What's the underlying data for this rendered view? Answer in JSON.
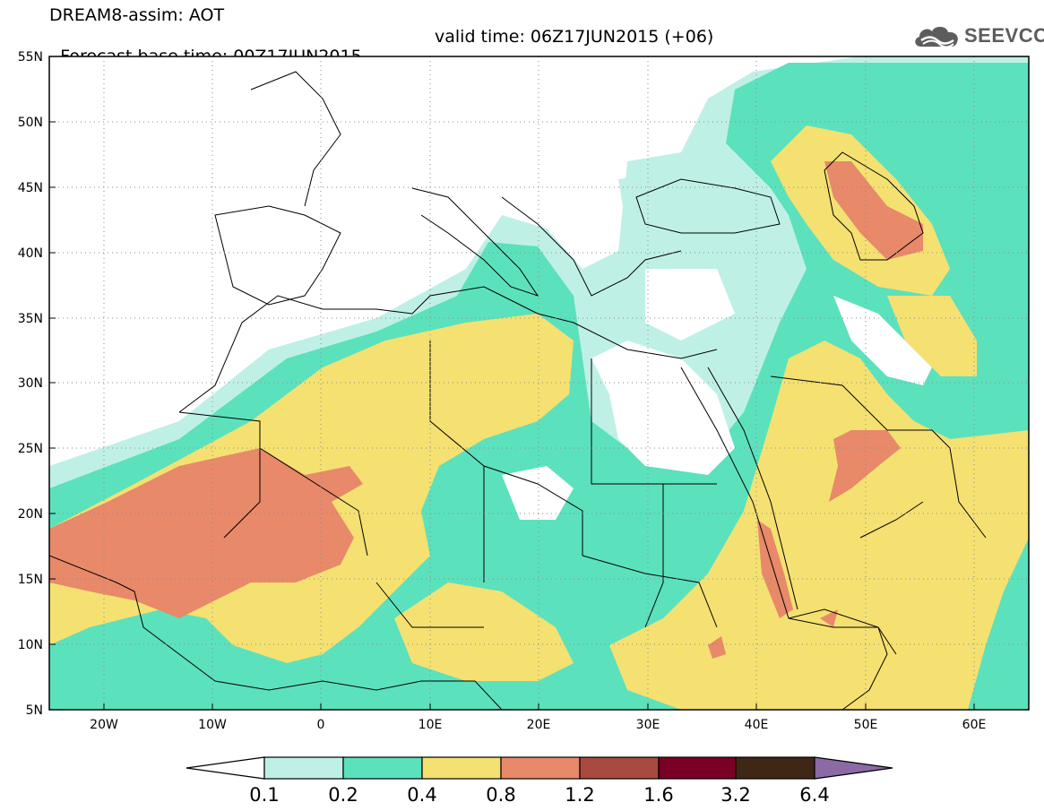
{
  "title": {
    "line1": "DREAM8-assim: AOT",
    "base_time": "Forecast base time: 00Z17JUN2015",
    "valid_time": "valid time: 06Z17JUN2015 (+06)"
  },
  "logo": {
    "text": "SEEVCCC",
    "icon": "cloud-logo-icon"
  },
  "axes": {
    "lat_labels": [
      "55N",
      "50N",
      "45N",
      "40N",
      "35N",
      "30N",
      "25N",
      "20N",
      "15N",
      "10N",
      "5N"
    ],
    "lat_values": [
      55,
      50,
      45,
      40,
      35,
      30,
      25,
      20,
      15,
      10,
      5
    ],
    "lon_labels": [
      "20W",
      "10W",
      "0",
      "10E",
      "20E",
      "30E",
      "40E",
      "50E",
      "60E"
    ],
    "lon_values": [
      -20,
      -10,
      0,
      10,
      20,
      30,
      40,
      50,
      60
    ],
    "lon_range": [
      -25,
      65
    ],
    "lat_range": [
      5,
      55
    ]
  },
  "colorbar": {
    "labels": [
      "0.1",
      "0.2",
      "0.4",
      "0.8",
      "1.2",
      "1.6",
      "3.2",
      "6.4"
    ],
    "colors": [
      "#ffffff",
      "#bff0e6",
      "#5ce1bd",
      "#f4e171",
      "#e8896a",
      "#a84a3f",
      "#7a0025",
      "#3f2716",
      "#8b6aa6"
    ]
  },
  "colors": {
    "c1": "#bff0e6",
    "c2": "#5ce1bd",
    "c3": "#f4e171",
    "c4": "#e8896a",
    "c5": "#a84a3f"
  }
}
